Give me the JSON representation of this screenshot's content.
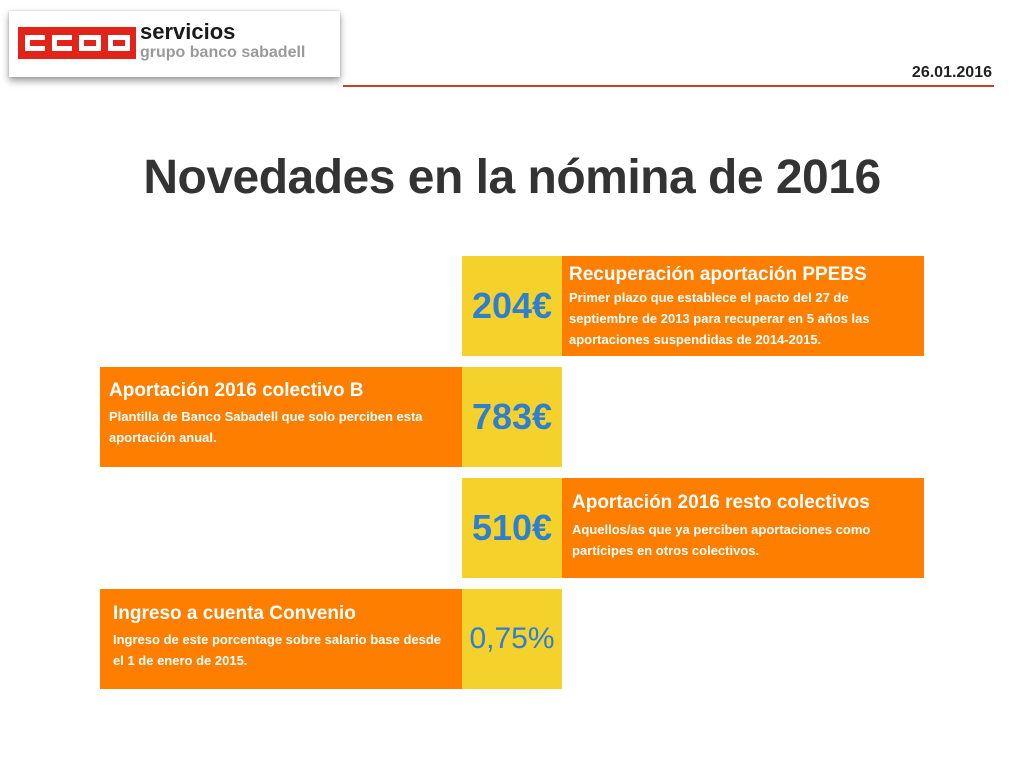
{
  "header": {
    "logo_alt": "CCOO",
    "brand": "servicios",
    "brand_sub": "grupo banco sabadell",
    "date": "26.01.2016"
  },
  "title": "Novedades en la nómina de 2016",
  "colors": {
    "value_bg": "#f5d12b",
    "value_text": "#2e7fd0",
    "info_bg": "#fe7e00",
    "rule": "#c64520",
    "logo_red": "#e2231a"
  },
  "items": [
    {
      "value": "204€",
      "heading": "Recuperación aportación PPEBS",
      "text": "Primer plazo que establece el pacto del 27 de septiembre de 2013 para recuperar en 5 años las aportaciones suspendidas de 2014-2015."
    },
    {
      "value": "783€",
      "heading": "Aportación 2016 colectivo B",
      "text": "Plantilla de Banco Sabadell que solo perciben esta aportación anual."
    },
    {
      "value": "510€",
      "heading": "Aportación 2016 resto colectivos",
      "text": "Aquellos/as que ya perciben aportaciones como partícipes en otros colectivos."
    },
    {
      "value": "0,75%",
      "heading": "Ingreso a cuenta Convenio",
      "text": "Ingreso de este porcentage sobre salario base desde el 1 de enero de 2015."
    }
  ]
}
